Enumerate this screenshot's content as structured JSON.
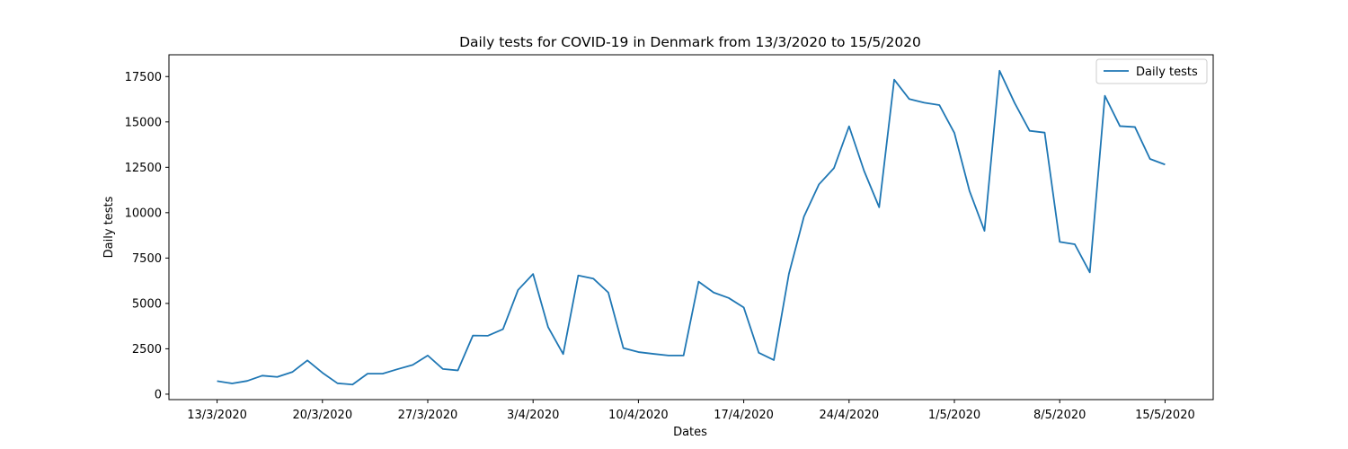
{
  "chart_data": {
    "type": "line",
    "title": "Daily tests for COVID-19 in Denmark from 13/3/2020 to 15/5/2020",
    "xlabel": "Dates",
    "ylabel": "Daily tests",
    "x_start_label": "13/3/2020",
    "x_tick_labels": [
      "13/3/2020",
      "20/3/2020",
      "27/3/2020",
      "3/4/2020",
      "10/4/2020",
      "17/4/2020",
      "24/4/2020",
      "1/5/2020",
      "8/5/2020",
      "15/5/2020"
    ],
    "y_ticks": [
      0,
      2500,
      5000,
      7500,
      10000,
      12500,
      15000,
      17500
    ],
    "y_tick_labels": [
      "0",
      "2500",
      "5000",
      "7500",
      "10000",
      "12500",
      "15000",
      "17500"
    ],
    "ylim": [
      -300,
      18700
    ],
    "grid": false,
    "legend_position": "top-right",
    "series": [
      {
        "name": "Daily tests",
        "color": "#1f77b4",
        "values": [
          720,
          590,
          730,
          1020,
          950,
          1220,
          1860,
          1180,
          600,
          530,
          1130,
          1130,
          1380,
          1610,
          2130,
          1390,
          1310,
          3230,
          3220,
          3580,
          5740,
          6620,
          3690,
          2210,
          6540,
          6370,
          5600,
          2540,
          2320,
          2220,
          2130,
          2130,
          6200,
          5600,
          5300,
          4780,
          2280,
          1880,
          6620,
          9780,
          11560,
          12460,
          14760,
          12300,
          10300,
          17330,
          16260,
          16060,
          15930,
          14390,
          11210,
          9000,
          17820,
          16050,
          14510,
          14410,
          8390,
          8260,
          6710,
          16440,
          14770,
          14720,
          12960,
          12650
        ]
      }
    ]
  }
}
